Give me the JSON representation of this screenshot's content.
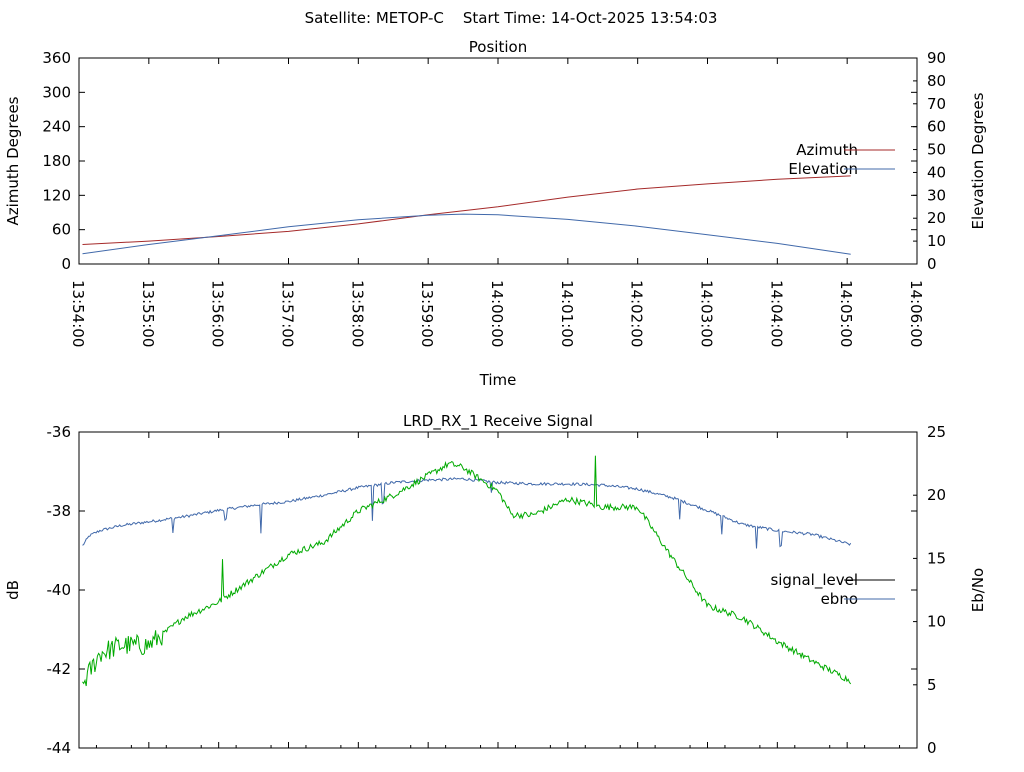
{
  "header": {
    "title": "Satellite: METOP-C    Start Time: 14-Oct-2025 13:54:03"
  },
  "chart_data": [
    {
      "type": "line",
      "title": "Position",
      "xlabel": "Time",
      "ylabel": "Azimuth Degrees",
      "y2label": "Elevation Degrees",
      "ylim": [
        0,
        360
      ],
      "y2lim": [
        0,
        90
      ],
      "y_ticks": [
        "0",
        "60",
        "120",
        "180",
        "240",
        "300",
        "360"
      ],
      "y2_ticks": [
        "0",
        "10",
        "20",
        "30",
        "40",
        "50",
        "60",
        "70",
        "80",
        "90"
      ],
      "x_ticks": [
        "13:54:00",
        "13:55:00",
        "13:56:00",
        "13:57:00",
        "13:58:00",
        "13:59:00",
        "14:00:00",
        "14:01:00",
        "14:02:00",
        "14:03:00",
        "14:04:00",
        "14:05:00",
        "14:06:00"
      ],
      "x_unit": "minutes after 13:54:00",
      "xlim": [
        0,
        12
      ],
      "legend_position": "right",
      "series": [
        {
          "name": "Azimuth",
          "axis": "left",
          "color": "#a52a2a",
          "x": [
            0.05,
            1,
            2,
            3,
            4,
            5,
            6,
            7,
            8,
            9,
            10,
            11.05
          ],
          "y": [
            34,
            40,
            48,
            57,
            70,
            86,
            100,
            117,
            131,
            140,
            148,
            154
          ]
        },
        {
          "name": "Elevation",
          "axis": "right",
          "color": "#4169aa",
          "x": [
            0.05,
            1,
            2,
            3,
            4,
            5,
            5.5,
            6,
            7,
            8,
            9,
            10,
            11.05
          ],
          "y": [
            4.5,
            8.5,
            12.3,
            16.3,
            19.3,
            21.3,
            21.8,
            21.5,
            19.5,
            16.5,
            12.8,
            9.0,
            4.3
          ]
        }
      ]
    },
    {
      "type": "line",
      "title": "LRD_RX_1 Receive Signal",
      "xlabel": "",
      "ylabel": "dB",
      "y2label": "Eb/No",
      "ylim": [
        -44,
        -36
      ],
      "y2lim": [
        0,
        25
      ],
      "y_ticks": [
        "-44",
        "-42",
        "-40",
        "-38",
        "-36"
      ],
      "y2_ticks": [
        "0",
        "5",
        "10",
        "15",
        "20",
        "25"
      ],
      "xlim": [
        0,
        12
      ],
      "legend_position": "right",
      "series": [
        {
          "name": "signal_level",
          "axis": "left",
          "color": "#000000",
          "legend_only": true,
          "x": [],
          "y": []
        },
        {
          "name": "ebno",
          "axis": "right",
          "color": "#4169aa",
          "x": [
            0.05,
            0.15,
            0.3,
            0.6,
            1,
            1.5,
            2,
            2.5,
            3,
            3.5,
            4,
            4.5,
            5,
            5.5,
            6,
            6.5,
            7,
            7.5,
            8,
            8.5,
            9,
            9.5,
            10,
            10.5,
            11.05
          ],
          "y": [
            16.0,
            16.8,
            17.2,
            17.6,
            17.9,
            18.3,
            18.8,
            19.2,
            19.5,
            20.0,
            20.6,
            21.0,
            21.2,
            21.3,
            21.0,
            20.9,
            20.9,
            20.8,
            20.5,
            19.8,
            18.8,
            17.7,
            17.2,
            16.9,
            16.1
          ]
        },
        {
          "name": "",
          "axis": "left",
          "color": "#00aa00",
          "x": [
            0.05,
            0.3,
            0.6,
            1,
            1.5,
            2,
            2.5,
            3,
            3.5,
            4,
            4.5,
            5,
            5.3,
            5.5,
            6,
            6.2,
            6.5,
            7,
            7.5,
            8,
            8.5,
            9,
            9.5,
            10,
            10.5,
            11.05
          ],
          "y": [
            -42.4,
            -41.6,
            -41.4,
            -41.4,
            -40.7,
            -40.3,
            -39.7,
            -39.1,
            -38.8,
            -38.0,
            -37.6,
            -37.1,
            -36.8,
            -36.9,
            -37.5,
            -38.1,
            -38.1,
            -37.7,
            -37.9,
            -37.9,
            -39.2,
            -40.4,
            -40.7,
            -41.3,
            -41.8,
            -42.3
          ]
        }
      ]
    }
  ]
}
